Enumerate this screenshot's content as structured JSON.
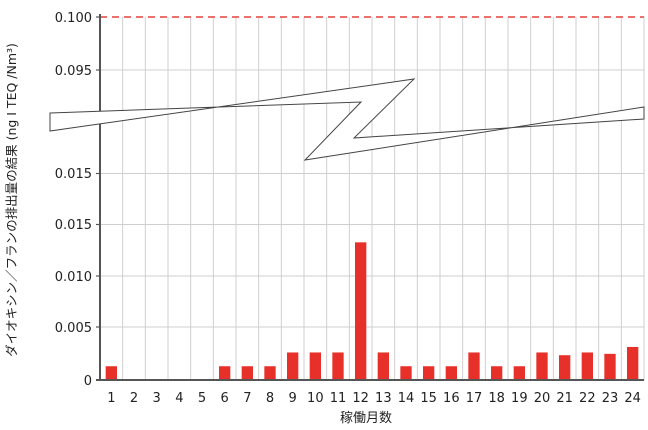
{
  "chart_data": {
    "type": "bar",
    "xlabel": "稼働月数",
    "ylabel": "ダイオキシン／フランの排出量の結果 (ng I TEQ /Nm³)",
    "categories": [
      "1",
      "2",
      "3",
      "4",
      "5",
      "6",
      "7",
      "8",
      "9",
      "10",
      "11",
      "12",
      "13",
      "14",
      "15",
      "16",
      "17",
      "18",
      "19",
      "20",
      "21",
      "22",
      "23",
      "24"
    ],
    "values": [
      0.001,
      0,
      0,
      0,
      0,
      0.001,
      0.001,
      0.001,
      0.002,
      0.002,
      0.002,
      0.01,
      0.002,
      0.001,
      0.001,
      0.001,
      0.002,
      0.001,
      0.001,
      0.002,
      0.0018,
      0.002,
      0.0019,
      0.0024
    ],
    "ylim": [
      0,
      0.1
    ],
    "axis_break": "between 0.015 and 0.095",
    "lower_ticks": [
      "0",
      "0.005",
      "0.010",
      "0.015",
      "0.015"
    ],
    "upper_ticks": [
      "0.095"
    ],
    "limit": {
      "value": 0.1,
      "label": "0.100",
      "color": "#e8413c",
      "style": "dashed"
    },
    "bar_color": "#e8302a",
    "grid": true
  }
}
